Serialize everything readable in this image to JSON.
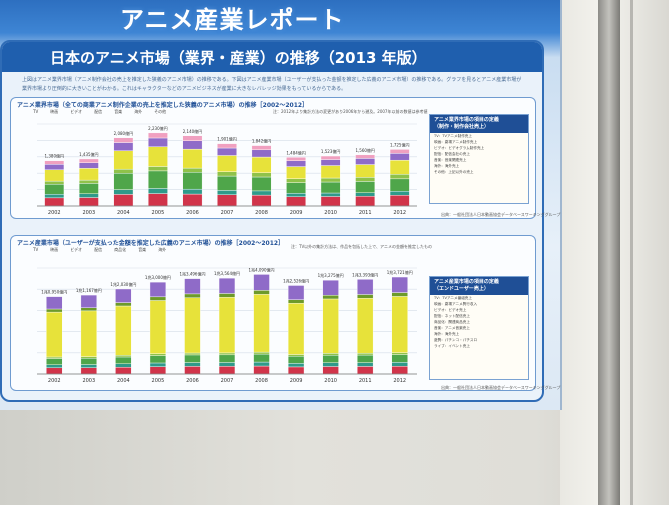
{
  "poster": {
    "banner_title": "アニメ産業レポート",
    "title": "日本のアニメ市場（業界・産業）の推移（2013 年版）",
    "intro": "上図はアニメ業界市場（アニメ制作会社の売上を推定した狭義のアニメ市場）の推移である。下図はアニメ産業市場（ユーザーが支払った金額を推定した広義のアニメ市場）の推移である。グラフを見るとアニメ産業市場が業界市場より圧倒的に大きいことがわかる。これはキャラクターなどのアニメビジネスが産業に大きなレバレッジ効果をもっているからである。",
    "chart1": {
      "title": "アニメ業界市場（全ての商業アニメ制作企業の売上を推定した狭義のアニメ市場）の推移［2002～2012］",
      "legend": [
        "TV",
        "映画",
        "ビデオ",
        "配信",
        "音楽",
        "海外",
        "その他"
      ],
      "note": "注：2012年より集計方法の変更があり2006年から遡及。2007年以前の数値は参考値",
      "source": "出典：一般社団法人日本動画協会データベースワーキンググループ"
    },
    "chart2": {
      "title": "アニメ産業市場（ユーザーが支払った金額を推定した広義のアニメ市場）の推移［2002～2012］",
      "legend": [
        "TV",
        "映画",
        "ビデオ",
        "配信",
        "商品化",
        "音楽",
        "海外"
      ],
      "note": "注：TV以外の集計方法は、作品を包括した上で、アニメの金額を推定したもの",
      "source": "出典：一般社団法人日本動画協会データベースワーキンググループ"
    },
    "side1": {
      "title": "アニメ業界市場の項目の定義",
      "subtitle": "（制作・制作会社売上）",
      "lines": [
        "TV：TVアニメ制作売上",
        "映画：劇場アニメ制作売上",
        "ビデオ：ビデオグラム制作売上",
        "配信：配信会社の売上",
        "音楽：音楽関連売上",
        "海外：海外売上",
        "その他：上記以外の売上"
      ]
    },
    "side2": {
      "title": "アニメ産業市場の項目の定義",
      "subtitle": "（エンドユーザー売上）",
      "lines": [
        "TV：TVアニメ番組売上",
        "映画：劇場アニメ興行収入",
        "ビデオ：ビデオ売上",
        "配信：ネット配信売上",
        "商品化：関連商品売上",
        "音楽：アニメ音楽売上",
        "海外：海外売上",
        "遊興：パチンコ・パチスロ",
        "ライブ：イベント売上"
      ]
    }
  },
  "chart_data": [
    {
      "type": "bar",
      "stacked": true,
      "categories": [
        "2002",
        "2003",
        "2004",
        "2005",
        "2006",
        "2007",
        "2008",
        "2009",
        "2010",
        "2011",
        "2012"
      ],
      "total_labels": [
        "1,380億円",
        "1,435億円",
        "2,080億円",
        "2,230億円",
        "2,140億円",
        "1,901億円",
        "1,842億円",
        "1,484億円",
        "1,523億円",
        "1,560億円",
        "1,725億円"
      ],
      "totals": [
        1380,
        1435,
        2080,
        2230,
        2140,
        1901,
        1842,
        1484,
        1523,
        1560,
        1725
      ],
      "series": [
        {
          "name": "TV",
          "color": "#d1344a"
        },
        {
          "name": "映画",
          "color": "#2f9a8a"
        },
        {
          "name": "ビデオ",
          "color": "#4fa64a"
        },
        {
          "name": "配信",
          "color": "#8fc24a"
        },
        {
          "name": "音楽",
          "color": "#e7e23a"
        },
        {
          "name": "海外",
          "color": "#8f6bc8"
        },
        {
          "name": "その他",
          "color": "#f0a0c0"
        }
      ],
      "shares": [
        [
          0.18,
          0.08,
          0.22,
          0.07,
          0.25,
          0.12,
          0.08
        ],
        [
          0.18,
          0.08,
          0.22,
          0.07,
          0.25,
          0.12,
          0.08
        ],
        [
          0.17,
          0.07,
          0.24,
          0.06,
          0.27,
          0.12,
          0.07
        ],
        [
          0.17,
          0.07,
          0.24,
          0.06,
          0.27,
          0.12,
          0.07
        ],
        [
          0.17,
          0.07,
          0.24,
          0.06,
          0.27,
          0.12,
          0.07
        ],
        [
          0.18,
          0.07,
          0.23,
          0.07,
          0.26,
          0.12,
          0.07
        ],
        [
          0.18,
          0.07,
          0.23,
          0.07,
          0.26,
          0.12,
          0.07
        ],
        [
          0.19,
          0.07,
          0.22,
          0.08,
          0.25,
          0.12,
          0.07
        ],
        [
          0.19,
          0.07,
          0.22,
          0.08,
          0.25,
          0.12,
          0.07
        ],
        [
          0.19,
          0.07,
          0.22,
          0.08,
          0.25,
          0.12,
          0.07
        ],
        [
          0.19,
          0.07,
          0.22,
          0.08,
          0.25,
          0.12,
          0.07
        ]
      ],
      "ylim": [
        0,
        2500
      ]
    },
    {
      "type": "bar",
      "stacked": true,
      "categories": [
        "2002",
        "2003",
        "2004",
        "2005",
        "2006",
        "2007",
        "2008",
        "2009",
        "2010",
        "2011",
        "2012"
      ],
      "total_labels": [
        "1兆0,950億円",
        "1兆1,167億円",
        "1兆2,030億円",
        "1兆3,000億円",
        "1兆3,496億円",
        "1兆3,564億円",
        "1兆4,090億円",
        "1兆2,526億円",
        "1兆3,275億円",
        "1兆3,393億円",
        "1兆3,721億円"
      ],
      "totals": [
        10950,
        11167,
        12030,
        13000,
        13496,
        13564,
        14090,
        12526,
        13275,
        13393,
        13721
      ],
      "series": [
        {
          "name": "TV",
          "color": "#d1344a"
        },
        {
          "name": "映画",
          "color": "#2f9a8a"
        },
        {
          "name": "ビデオ",
          "color": "#4fa64a"
        },
        {
          "name": "配信",
          "color": "#8fc24a"
        },
        {
          "name": "商品化",
          "color": "#e7e23a"
        },
        {
          "name": "音楽",
          "color": "#6d9a2a"
        },
        {
          "name": "海外",
          "color": "#8f6bc8"
        }
      ],
      "shares": [
        [
          0.08,
          0.04,
          0.08,
          0.02,
          0.58,
          0.04,
          0.16
        ],
        [
          0.08,
          0.04,
          0.08,
          0.02,
          0.58,
          0.04,
          0.16
        ],
        [
          0.08,
          0.04,
          0.08,
          0.02,
          0.58,
          0.04,
          0.16
        ],
        [
          0.08,
          0.04,
          0.08,
          0.02,
          0.58,
          0.04,
          0.16
        ],
        [
          0.08,
          0.04,
          0.08,
          0.02,
          0.58,
          0.04,
          0.16
        ],
        [
          0.08,
          0.04,
          0.08,
          0.02,
          0.58,
          0.04,
          0.16
        ],
        [
          0.08,
          0.04,
          0.08,
          0.02,
          0.58,
          0.04,
          0.16
        ],
        [
          0.08,
          0.04,
          0.08,
          0.02,
          0.58,
          0.04,
          0.16
        ],
        [
          0.08,
          0.04,
          0.08,
          0.02,
          0.58,
          0.04,
          0.16
        ],
        [
          0.08,
          0.04,
          0.08,
          0.02,
          0.58,
          0.04,
          0.16
        ],
        [
          0.08,
          0.04,
          0.08,
          0.02,
          0.58,
          0.04,
          0.16
        ]
      ],
      "ylim": [
        0,
        15000
      ]
    }
  ]
}
